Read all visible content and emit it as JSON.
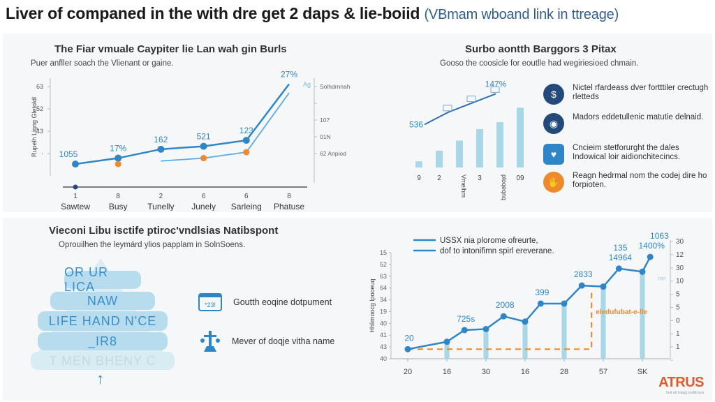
{
  "header": {
    "title": "Liver of companed in the with dre get 2 daps & lie-boiid",
    "link_text": "(VBmam wboand link in ttreage)"
  },
  "colors": {
    "primary_blue": "#2f86c6",
    "light_blue": "#9fd3e6",
    "orange": "#ee8a2b",
    "navy": "#234a7a",
    "panel_bg": "#f6f7f8"
  },
  "top_left": {
    "title": "The Fiar vmuale Caypiter lie Lan wah gin Burls",
    "description": "Puer anfller soach the Vlienant or gaine."
  },
  "top_right": {
    "title": "Surbo aontth Barggors 3 Pitax",
    "description": "Gooso the coosicle for eoutlle had wegiriesioed chmain.",
    "features": [
      {
        "icon": "bag-money-icon",
        "text": "Nictel rfardeass dver fortttiler crectugh rletteds"
      },
      {
        "icon": "target-eye-icon",
        "text": "Madors eddetullenic matutie delnaid."
      },
      {
        "icon": "gear-heart-icon",
        "text": "Cncieim stetforurght the dales Indowical loir aidionchitecincs."
      },
      {
        "icon": "handshake-icon",
        "text": "Reagn hedrmal nom the codej dire ho forpioten."
      }
    ]
  },
  "bottom_left": {
    "title": "Vieconi Libu isctife ptiroc'vndlsias Natibspont",
    "description": "Oprouilhen the leymárd ylios papplam in SolnSoens.",
    "pyramid": [
      "OR UR LICA",
      "NAW",
      "LIFE HAND N'CE",
      "_IR8",
      "T MEN BHENY C"
    ],
    "side_items": [
      {
        "icon": "calendar-icon",
        "text": "Goutth eoqine dotpument"
      },
      {
        "icon": "scales-icon",
        "text": "Mever of doqje vitha name"
      }
    ]
  },
  "logo": {
    "brand": "ATRUS",
    "tagline": "bed att tolagg esdiltcsea"
  },
  "chart_data": [
    {
      "type": "line",
      "title": "The Fiar vmuale Caypiter lie Lan wah gin Burls",
      "xlabel": "",
      "ylabel": "Rupelh Ligng Gletoldl",
      "categories": [
        "Sawtew",
        "Busy",
        "Tunelly",
        "Junely",
        "Sarleing",
        "Phatuse"
      ],
      "x_tick_numbers": [
        "1",
        "8",
        "2",
        "6",
        "6",
        "8"
      ],
      "y_ticks_left": [
        "63",
        "52",
        "43",
        ""
      ],
      "y_ticks_right": [
        "Solhdrnnah",
        "",
        "107",
        "01N",
        "62 Anpiod"
      ],
      "ylim": [
        30,
        63
      ],
      "series": [
        {
          "name": "primary",
          "color": "#2f86c6",
          "values": [
            34,
            36,
            39,
            40,
            42,
            61
          ],
          "labels": [
            "1055",
            "17%",
            "162",
            "521",
            "123",
            "27%"
          ]
        },
        {
          "name": "secondary",
          "color": "#5aaee0",
          "values": [
            null,
            null,
            35,
            36,
            38,
            58
          ],
          "labels": []
        },
        {
          "name": "orange-markers",
          "color": "#ee8a2b",
          "values": [
            null,
            34,
            null,
            36,
            38,
            null
          ],
          "labels": []
        }
      ],
      "end_label": "Ag"
    },
    {
      "type": "bar",
      "title": "Surbo aontth Barggors 3 Pitax",
      "categories": [
        "9",
        "2",
        "Vmelhm",
        "3",
        "ploqeqnq",
        "09"
      ],
      "values": [
        8,
        22,
        35,
        50,
        59,
        78
      ],
      "line_series": {
        "color": "#2f6fb0",
        "values": [
          56,
          72,
          84,
          96
        ],
        "start_label": "536",
        "end_label": "147%"
      },
      "ylim": [
        0,
        100
      ]
    },
    {
      "type": "line",
      "title": "",
      "legend": [
        "USSX nia plorome ofreurte,",
        "dof to intonifimn spirl ereverane."
      ],
      "legend_position": "top-left",
      "ylabel": "Hhlimoocg lpooeuq",
      "categories": [
        "20",
        "16",
        "30",
        "16",
        "28",
        "57",
        "SK"
      ],
      "y_ticks_left": [
        "15",
        "52",
        "63",
        "64",
        "34",
        "19",
        "40",
        "41",
        "43",
        "40"
      ],
      "y_ticks_right": [
        "30",
        "12",
        "30",
        "10",
        "5",
        "5",
        "0",
        "1",
        "1",
        ""
      ],
      "ylim": [
        0,
        10
      ],
      "series": [
        {
          "name": "main",
          "color": "#2f86c6",
          "x": [
            0,
            1,
            1.45,
            2,
            2.45,
            3,
            3.4,
            4,
            4.45,
            5,
            5.4,
            6,
            6.2
          ],
          "values": [
            0.9,
            1.6,
            2.7,
            2.8,
            4.0,
            3.5,
            5.2,
            5.2,
            6.9,
            6.8,
            8.5,
            8.2,
            9.6
          ],
          "labels": [
            [
              "20",
              0
            ],
            [
              "725s",
              1
            ],
            [
              "2008",
              2
            ],
            [
              "399",
              3
            ],
            [
              "2833",
              4
            ],
            [
              "14964",
              5
            ],
            [
              "135",
              5.2
            ],
            [
              "1400%",
              6
            ],
            [
              "1063",
              6.2
            ]
          ]
        }
      ],
      "bars_at": [
        1,
        2,
        3,
        4,
        5,
        6
      ],
      "bar_values": [
        1.6,
        2.8,
        3.5,
        5.2,
        6.8,
        8.2
      ],
      "threshold_line": {
        "color": "#ee8a2b",
        "value": 0.9,
        "until_x": 4.7,
        "label": "eledufubat-e-lle"
      },
      "right_tag": "ron"
    }
  ]
}
